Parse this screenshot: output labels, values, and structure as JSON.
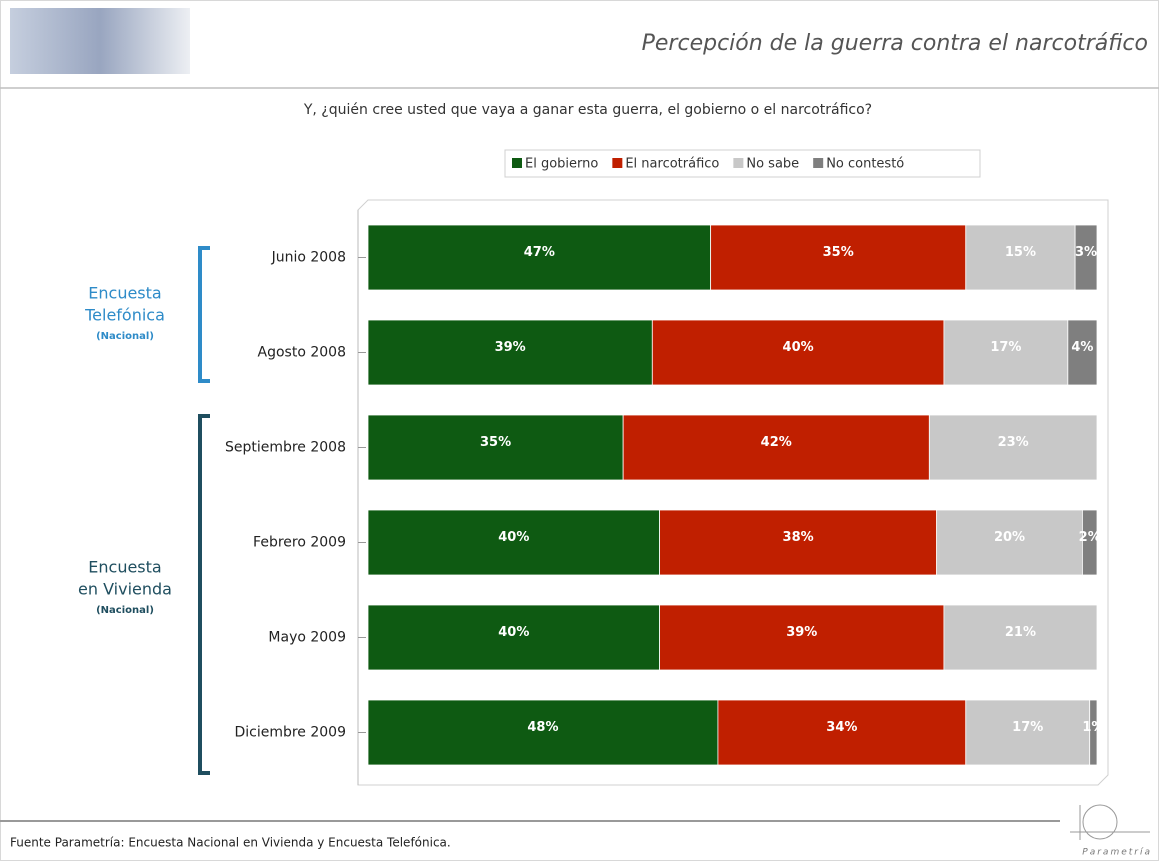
{
  "chart_data": {
    "type": "stacked-barh",
    "title": "Percepción de la guerra contra el narcotráfico",
    "subtitle": "Y, ¿quién cree usted que vaya a ganar esta guerra, el gobierno o el narcotráfico?",
    "categories": [
      "Junio 2008",
      "Agosto 2008",
      "Septiembre 2008",
      "Febrero 2009",
      "Mayo 2009",
      "Diciembre 2009"
    ],
    "series": [
      {
        "name": "El gobierno",
        "color": "#0e5a12",
        "values": [
          47,
          39,
          35,
          40,
          40,
          48
        ],
        "value_labels": [
          "47%",
          "39%",
          "35%",
          "40%",
          "40%",
          "48%"
        ]
      },
      {
        "name": "El narcotráfico",
        "color": "#c01f00",
        "values": [
          35,
          40,
          42,
          38,
          39,
          34
        ],
        "value_labels": [
          "35%",
          "40%",
          "42%",
          "38%",
          "39%",
          "34%"
        ]
      },
      {
        "name": "No sabe",
        "color": "#c8c8c8",
        "values": [
          15,
          17,
          23,
          20,
          21,
          17
        ],
        "value_labels": [
          "15%",
          "17%",
          "23%",
          "20%",
          "21%",
          "17%"
        ]
      },
      {
        "name": "No contestó",
        "color": "#7f7f7f",
        "values": [
          3,
          4,
          0,
          2,
          0,
          1
        ],
        "value_labels": [
          "3%",
          "4%",
          null,
          "2%",
          null,
          "1%"
        ]
      }
    ],
    "xlim": [
      0,
      100
    ],
    "annotations": [
      {
        "lines": [
          "Encuesta",
          "Telefónica"
        ],
        "note": "(Nacional)"
      },
      {
        "lines": [
          "Encuesta",
          "en Vivienda"
        ],
        "note": "(Nacional)"
      }
    ],
    "source": "Fuente Parametría: Encuesta Nacional en Vivienda y Encuesta Telefónica.",
    "logo": "Parametría"
  }
}
